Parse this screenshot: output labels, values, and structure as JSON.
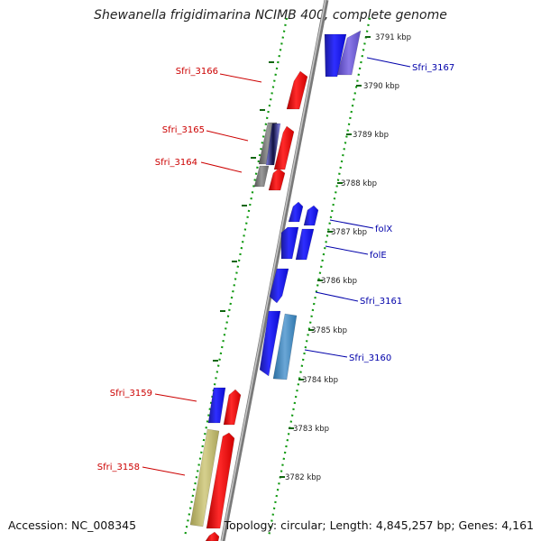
{
  "title": "Shewanella frigidimarina NCIMB 400, complete genome",
  "footer": {
    "accession": "Accession: NC_008345",
    "topology": "Topology: circular; Length: 4,845,257 bp; Genes: 4,161"
  },
  "colors": {
    "forward_label": "#cc0000",
    "reverse_label": "#0000aa",
    "backbone": "#8c8c8c",
    "tick_dots": "#119911"
  },
  "ticks": [
    "3791 kbp",
    "3790 kbp",
    "3789 kbp",
    "3788 kbp",
    "3787 kbp",
    "3786 kbp",
    "3785 kbp",
    "3784 kbp",
    "3783 kbp",
    "3782 kbp"
  ],
  "genes_left": [
    "Sfri_3166",
    "Sfri_3165",
    "Sfri_3164",
    "Sfri_3159",
    "Sfri_3158"
  ],
  "genes_right": [
    "Sfri_3167",
    "folX",
    "folE",
    "Sfri_3161",
    "Sfri_3160"
  ]
}
